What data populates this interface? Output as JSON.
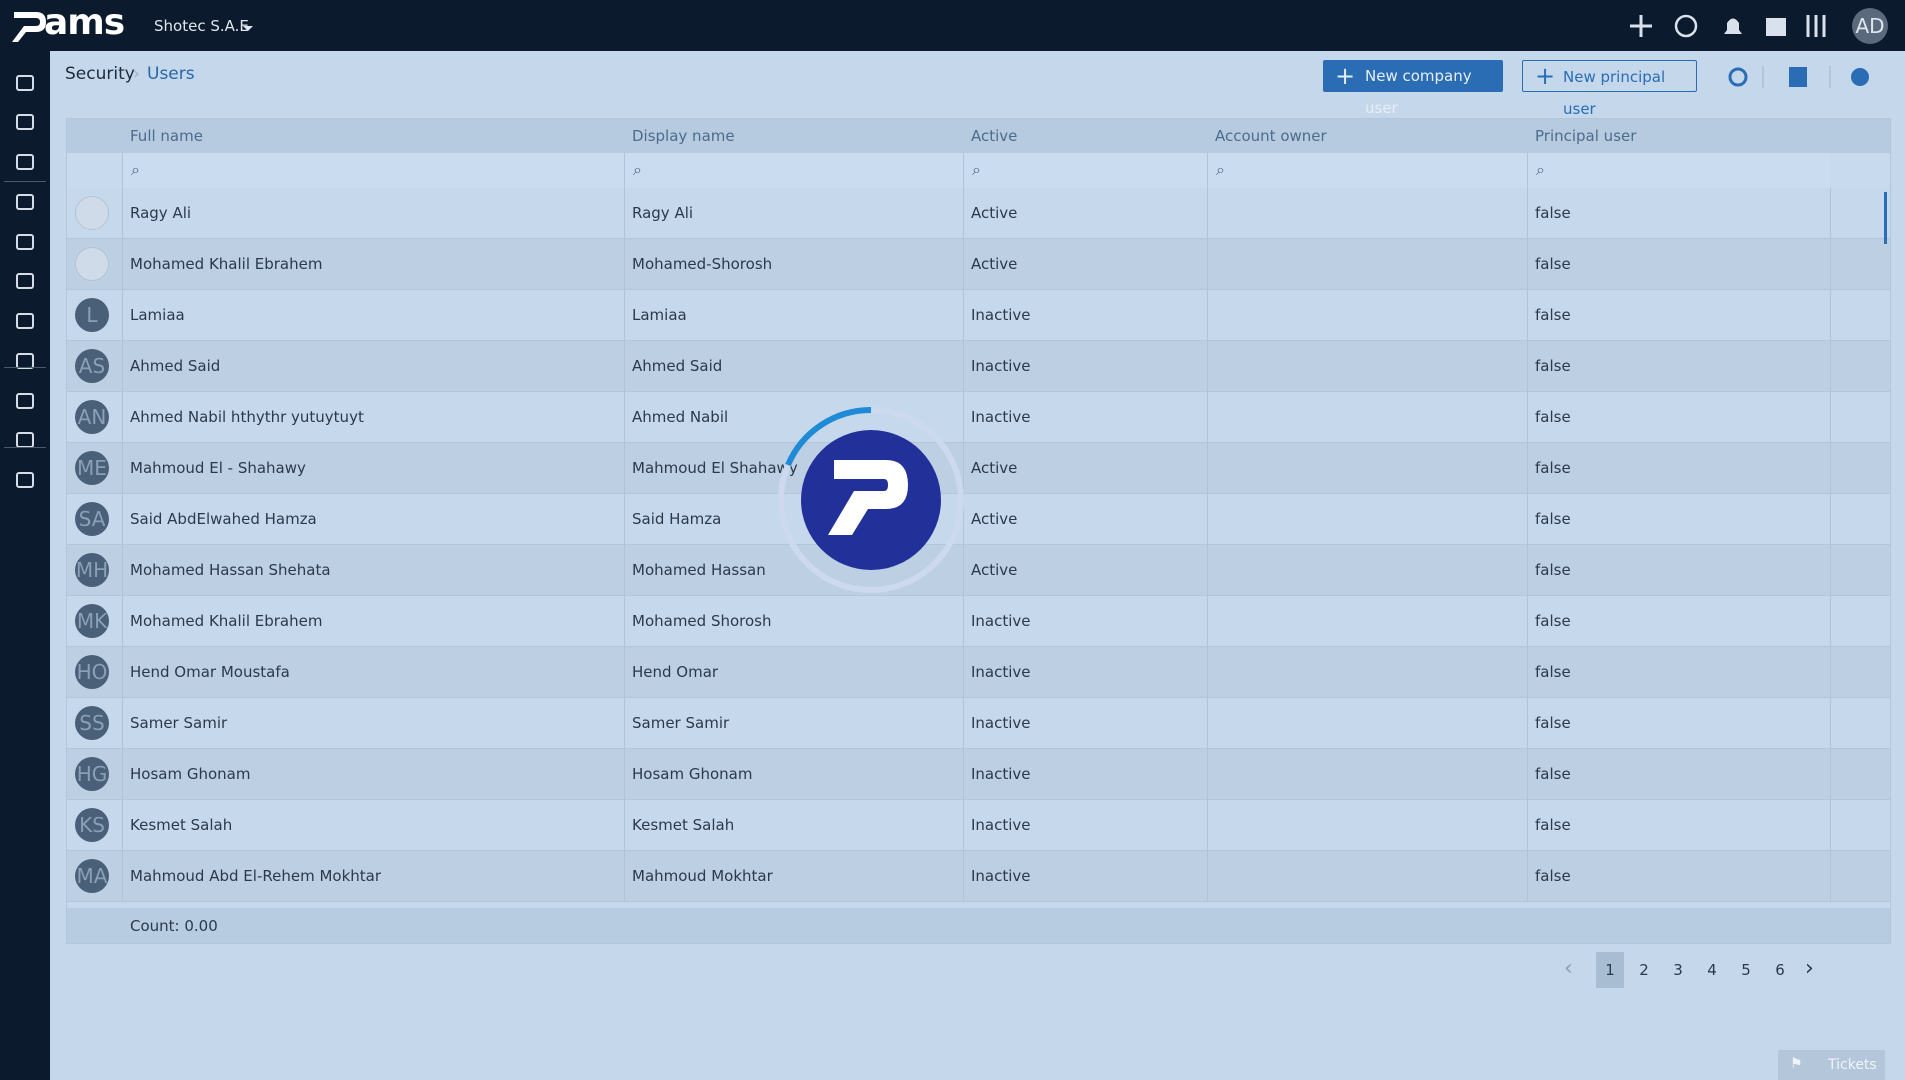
{
  "header": {
    "logo_text": "ams",
    "company": "Shotec S.A.E",
    "user_initials": "AD"
  },
  "breadcrumb": {
    "section": "Security",
    "page": "Users"
  },
  "toolbar": {
    "new_company_user": "New company user",
    "new_principal_user": "New principal user"
  },
  "table": {
    "columns": [
      "Full name",
      "Display name",
      "Active",
      "Account owner",
      "Principal user"
    ],
    "rows": [
      {
        "avatar": null,
        "full_name": "Ragy Ali",
        "display_name": "Ragy Ali",
        "active": "Active",
        "principal_user": "false"
      },
      {
        "avatar": null,
        "full_name": "Mohamed Khalil Ebrahem",
        "display_name": "Mohamed-Shorosh",
        "active": "Active",
        "principal_user": "false"
      },
      {
        "avatar": "L",
        "full_name": "Lamiaa",
        "display_name": "Lamiaa",
        "active": "Inactive",
        "principal_user": "false"
      },
      {
        "avatar": "AS",
        "full_name": "Ahmed Said",
        "display_name": "Ahmed Said",
        "active": "Inactive",
        "principal_user": "false"
      },
      {
        "avatar": "AN",
        "full_name": "Ahmed Nabil hthythr yutuytuyt",
        "display_name": "Ahmed Nabil",
        "active": "Inactive",
        "principal_user": "false"
      },
      {
        "avatar": "ME",
        "full_name": "Mahmoud El - Shahawy",
        "display_name": "Mahmoud El Shahawy",
        "active": "Active",
        "principal_user": "false"
      },
      {
        "avatar": "SA",
        "full_name": "Said AbdElwahed Hamza",
        "display_name": "Said Hamza",
        "active": "Active",
        "principal_user": "false"
      },
      {
        "avatar": "MH",
        "full_name": "Mohamed Hassan Shehata",
        "display_name": "Mohamed Hassan",
        "active": "Active",
        "principal_user": "false"
      },
      {
        "avatar": "MK",
        "full_name": "Mohamed Khalil Ebrahem",
        "display_name": "Mohamed Shorosh",
        "active": "Inactive",
        "principal_user": "false"
      },
      {
        "avatar": "HO",
        "full_name": "Hend Omar Moustafa",
        "display_name": "Hend Omar",
        "active": "Inactive",
        "principal_user": "false"
      },
      {
        "avatar": "SS",
        "full_name": "Samer Samir",
        "display_name": "Samer Samir",
        "active": "Inactive",
        "principal_user": "false"
      },
      {
        "avatar": "HG",
        "full_name": "Hosam Ghonam",
        "display_name": "Hosam Ghonam",
        "active": "Inactive",
        "principal_user": "false"
      },
      {
        "avatar": "KS",
        "full_name": "Kesmet Salah",
        "display_name": "Kesmet Salah",
        "active": "Inactive",
        "principal_user": "false"
      },
      {
        "avatar": "MA",
        "full_name": "Mahmoud Abd El-Rehem Mokhtar",
        "display_name": "Mahmoud Mokhtar",
        "active": "Inactive",
        "principal_user": "false"
      }
    ],
    "count": "Count: 0.00"
  },
  "pagination": {
    "pages": [
      1,
      2,
      3,
      4,
      5,
      6
    ],
    "current": 1
  },
  "tickets": "Tickets"
}
